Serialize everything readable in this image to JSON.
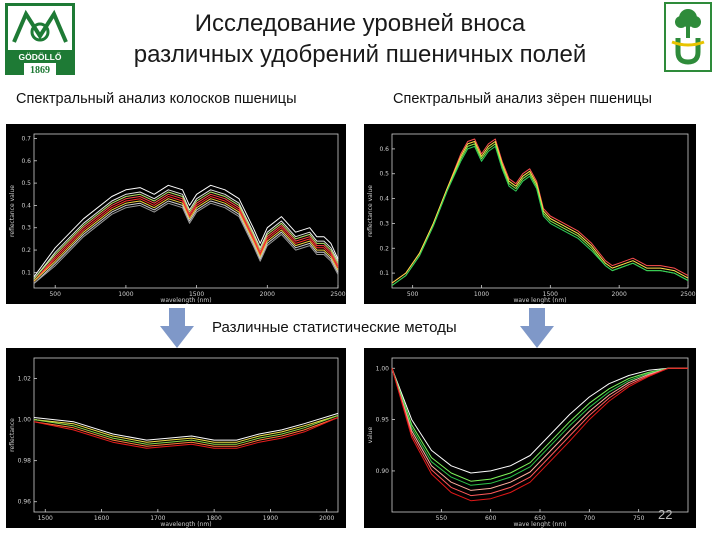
{
  "slide": {
    "title_line1": "Исследование уровней вноса",
    "title_line2": "различных удобрений пшеничных полей",
    "left_caption": "Спектральный анализ колосков пшеницы",
    "right_caption": "Спектральный анализ зёрен пшеницы",
    "methods_caption": "Различные статистические методы",
    "page_number": "22"
  },
  "logo_left": {
    "text_main": "GÖDÖLLŐ",
    "text_year": "1869",
    "color": "#1e7a35"
  },
  "logo_right": {
    "color": "#2e8b3a",
    "accent": "#e8c400"
  },
  "colors": {
    "background_panel": "#000000",
    "arrow": "#7f98c8"
  },
  "chart_data": [
    {
      "type": "line",
      "panel": "top-left",
      "xlabel": "wavelength (nm)",
      "ylabel": "reflectance value",
      "xticks": [
        "500",
        "1000",
        "1500",
        "2000",
        "2500"
      ],
      "yticks": [
        "0.1",
        "0.2",
        "0.3",
        "0.4",
        "0.5",
        "0.6",
        "0.7"
      ],
      "xlim": [
        350,
        2500
      ],
      "ylim": [
        0.03,
        0.72
      ],
      "x": [
        350,
        500,
        700,
        900,
        1000,
        1100,
        1200,
        1300,
        1400,
        1450,
        1500,
        1600,
        1700,
        1800,
        1900,
        1950,
        2000,
        2100,
        2200,
        2300,
        2350,
        2400,
        2450,
        2500
      ],
      "series": [
        {
          "color": "#ffffff",
          "values": [
            0.08,
            0.21,
            0.34,
            0.44,
            0.47,
            0.48,
            0.45,
            0.49,
            0.47,
            0.4,
            0.45,
            0.49,
            0.47,
            0.43,
            0.3,
            0.23,
            0.3,
            0.35,
            0.28,
            0.3,
            0.26,
            0.26,
            0.23,
            0.16
          ]
        },
        {
          "color": "#e8e8e8",
          "values": [
            0.07,
            0.19,
            0.32,
            0.42,
            0.45,
            0.46,
            0.43,
            0.47,
            0.45,
            0.38,
            0.43,
            0.47,
            0.45,
            0.41,
            0.28,
            0.21,
            0.28,
            0.33,
            0.26,
            0.28,
            0.24,
            0.24,
            0.21,
            0.15
          ]
        },
        {
          "color": "#b7e36a",
          "values": [
            0.07,
            0.18,
            0.31,
            0.41,
            0.44,
            0.45,
            0.42,
            0.46,
            0.44,
            0.37,
            0.42,
            0.46,
            0.44,
            0.4,
            0.27,
            0.2,
            0.27,
            0.32,
            0.25,
            0.27,
            0.23,
            0.23,
            0.2,
            0.14
          ]
        },
        {
          "color": "#ff4a4a",
          "values": [
            0.06,
            0.17,
            0.3,
            0.4,
            0.43,
            0.44,
            0.41,
            0.45,
            0.43,
            0.36,
            0.41,
            0.45,
            0.43,
            0.39,
            0.26,
            0.19,
            0.26,
            0.31,
            0.24,
            0.26,
            0.22,
            0.22,
            0.19,
            0.13
          ]
        },
        {
          "color": "#ff2d2d",
          "values": [
            0.06,
            0.16,
            0.29,
            0.39,
            0.42,
            0.43,
            0.4,
            0.44,
            0.42,
            0.35,
            0.4,
            0.44,
            0.42,
            0.38,
            0.25,
            0.18,
            0.25,
            0.3,
            0.23,
            0.25,
            0.21,
            0.21,
            0.18,
            0.12
          ]
        },
        {
          "color": "#f0d040",
          "values": [
            0.06,
            0.15,
            0.28,
            0.38,
            0.41,
            0.42,
            0.39,
            0.43,
            0.41,
            0.34,
            0.39,
            0.43,
            0.41,
            0.37,
            0.24,
            0.17,
            0.24,
            0.29,
            0.22,
            0.24,
            0.2,
            0.2,
            0.17,
            0.11
          ]
        },
        {
          "color": "#d0d0d0",
          "values": [
            0.05,
            0.14,
            0.27,
            0.37,
            0.4,
            0.41,
            0.38,
            0.42,
            0.4,
            0.33,
            0.38,
            0.42,
            0.4,
            0.36,
            0.23,
            0.16,
            0.23,
            0.28,
            0.21,
            0.23,
            0.19,
            0.19,
            0.16,
            0.1
          ]
        },
        {
          "color": "#9a9a9a",
          "values": [
            0.05,
            0.13,
            0.26,
            0.36,
            0.39,
            0.4,
            0.37,
            0.41,
            0.39,
            0.32,
            0.37,
            0.41,
            0.39,
            0.35,
            0.22,
            0.15,
            0.22,
            0.27,
            0.2,
            0.22,
            0.18,
            0.18,
            0.15,
            0.09
          ]
        }
      ]
    },
    {
      "type": "line",
      "panel": "top-right",
      "xlabel": "wave lenght (nm)",
      "ylabel": "reflectance value",
      "xticks": [
        "500",
        "1000",
        "1500",
        "2000",
        "2500"
      ],
      "yticks": [
        "0.1",
        "0.2",
        "0.3",
        "0.4",
        "0.5",
        "0.6"
      ],
      "xlim": [
        350,
        2500
      ],
      "ylim": [
        0.04,
        0.66
      ],
      "x": [
        350,
        450,
        550,
        650,
        750,
        850,
        900,
        950,
        1000,
        1050,
        1100,
        1150,
        1200,
        1250,
        1300,
        1350,
        1400,
        1450,
        1500,
        1600,
        1700,
        1800,
        1900,
        1950,
        2000,
        2100,
        2200,
        2300,
        2400,
        2500
      ],
      "series": [
        {
          "color": "#ff5050",
          "values": [
            0.06,
            0.1,
            0.18,
            0.3,
            0.44,
            0.58,
            0.63,
            0.64,
            0.58,
            0.62,
            0.64,
            0.55,
            0.48,
            0.46,
            0.5,
            0.52,
            0.47,
            0.36,
            0.33,
            0.3,
            0.27,
            0.22,
            0.15,
            0.13,
            0.14,
            0.16,
            0.13,
            0.13,
            0.12,
            0.09
          ]
        },
        {
          "color": "#ffe14a",
          "values": [
            0.06,
            0.1,
            0.18,
            0.3,
            0.44,
            0.57,
            0.62,
            0.63,
            0.57,
            0.61,
            0.63,
            0.54,
            0.47,
            0.45,
            0.49,
            0.51,
            0.46,
            0.35,
            0.32,
            0.29,
            0.26,
            0.21,
            0.14,
            0.12,
            0.13,
            0.15,
            0.12,
            0.12,
            0.11,
            0.08
          ]
        },
        {
          "color": "#8fe84a",
          "values": [
            0.05,
            0.09,
            0.17,
            0.29,
            0.43,
            0.56,
            0.61,
            0.62,
            0.56,
            0.6,
            0.62,
            0.53,
            0.46,
            0.44,
            0.48,
            0.5,
            0.45,
            0.34,
            0.31,
            0.28,
            0.25,
            0.2,
            0.13,
            0.11,
            0.12,
            0.14,
            0.11,
            0.11,
            0.1,
            0.07
          ]
        },
        {
          "color": "#2fcf5a",
          "values": [
            0.05,
            0.09,
            0.17,
            0.29,
            0.43,
            0.55,
            0.6,
            0.61,
            0.55,
            0.59,
            0.61,
            0.52,
            0.45,
            0.43,
            0.47,
            0.49,
            0.44,
            0.33,
            0.3,
            0.27,
            0.24,
            0.19,
            0.13,
            0.11,
            0.12,
            0.14,
            0.11,
            0.11,
            0.1,
            0.07
          ]
        }
      ]
    },
    {
      "type": "line",
      "panel": "bottom-left",
      "xlabel": "wavelength (nm)",
      "ylabel": "reflectance",
      "xticks": [
        "1500",
        "1600",
        "1700",
        "1800",
        "1900",
        "2000"
      ],
      "yticks": [
        "1.02",
        "1.00",
        "0.98",
        "0.96"
      ],
      "xlim": [
        1480,
        2020
      ],
      "ylim": [
        0.955,
        1.03
      ],
      "x": [
        1480,
        1550,
        1620,
        1680,
        1720,
        1760,
        1800,
        1840,
        1880,
        1920,
        1960,
        2020
      ],
      "series": [
        {
          "color": "#ffffff",
          "values": [
            1.001,
            0.999,
            0.993,
            0.99,
            0.991,
            0.992,
            0.99,
            0.99,
            0.993,
            0.995,
            0.998,
            1.003
          ]
        },
        {
          "color": "#f2e24a",
          "values": [
            1.0,
            0.998,
            0.992,
            0.989,
            0.99,
            0.991,
            0.989,
            0.989,
            0.992,
            0.994,
            0.997,
            1.002
          ]
        },
        {
          "color": "#8fd84a",
          "values": [
            1.0,
            0.997,
            0.991,
            0.988,
            0.989,
            0.99,
            0.988,
            0.988,
            0.991,
            0.993,
            0.996,
            1.002
          ]
        },
        {
          "color": "#ff7a3a",
          "values": [
            0.999,
            0.996,
            0.99,
            0.987,
            0.988,
            0.989,
            0.987,
            0.987,
            0.99,
            0.992,
            0.995,
            1.001
          ]
        },
        {
          "color": "#e81e1e",
          "values": [
            0.999,
            0.995,
            0.989,
            0.986,
            0.987,
            0.988,
            0.986,
            0.986,
            0.989,
            0.991,
            0.994,
            1.001
          ]
        }
      ]
    },
    {
      "type": "line",
      "panel": "bottom-right",
      "xlabel": "wave lenght (nm)",
      "ylabel": "value",
      "xticks": [
        "550",
        "600",
        "650",
        "700",
        "750"
      ],
      "yticks": [
        "1.00",
        "0.95",
        "0.90"
      ],
      "xlim": [
        500,
        800
      ],
      "ylim": [
        0.86,
        1.01
      ],
      "x": [
        500,
        520,
        540,
        560,
        580,
        600,
        620,
        640,
        660,
        680,
        700,
        720,
        740,
        760,
        780,
        800
      ],
      "series": [
        {
          "color": "#ffffff",
          "values": [
            1.0,
            0.95,
            0.92,
            0.905,
            0.898,
            0.9,
            0.905,
            0.915,
            0.935,
            0.955,
            0.972,
            0.985,
            0.993,
            0.998,
            1.0,
            1.0
          ]
        },
        {
          "color": "#7cf25a",
          "values": [
            1.0,
            0.945,
            0.913,
            0.898,
            0.89,
            0.892,
            0.898,
            0.908,
            0.928,
            0.948,
            0.966,
            0.98,
            0.99,
            0.996,
            1.0,
            1.0
          ]
        },
        {
          "color": "#2ec44a",
          "values": [
            1.0,
            0.942,
            0.909,
            0.894,
            0.886,
            0.888,
            0.894,
            0.904,
            0.924,
            0.944,
            0.962,
            0.977,
            0.988,
            0.995,
            1.0,
            1.0
          ]
        },
        {
          "color": "#ffb0a0",
          "values": [
            1.0,
            0.939,
            0.905,
            0.889,
            0.881,
            0.883,
            0.889,
            0.899,
            0.919,
            0.939,
            0.958,
            0.974,
            0.986,
            0.994,
            1.0,
            1.0
          ]
        },
        {
          "color": "#ff5a5a",
          "values": [
            1.0,
            0.936,
            0.901,
            0.884,
            0.876,
            0.878,
            0.884,
            0.894,
            0.914,
            0.934,
            0.954,
            0.971,
            0.984,
            0.993,
            1.0,
            1.0
          ]
        },
        {
          "color": "#e01818",
          "values": [
            1.0,
            0.933,
            0.897,
            0.879,
            0.871,
            0.873,
            0.879,
            0.889,
            0.909,
            0.929,
            0.95,
            0.968,
            0.982,
            0.992,
            1.0,
            1.0
          ]
        }
      ]
    }
  ]
}
